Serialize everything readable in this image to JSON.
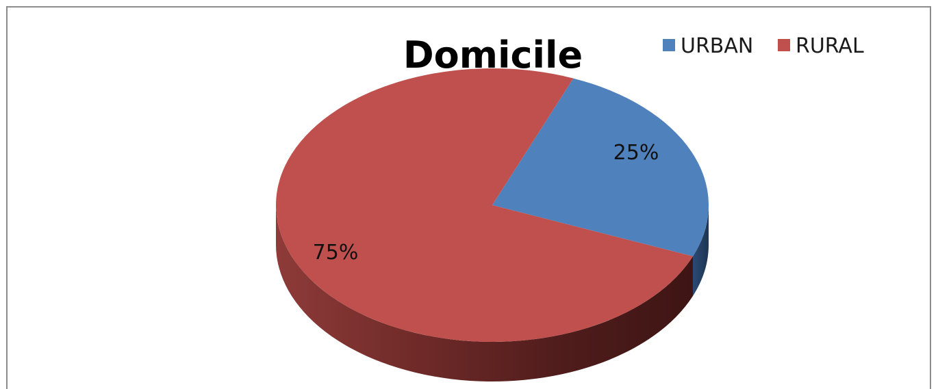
{
  "chart_data": {
    "type": "pie",
    "title": "Domicile",
    "categories": [
      "URBAN",
      "RURAL"
    ],
    "values": [
      25,
      75
    ],
    "data_labels": [
      "25%",
      "75%"
    ],
    "colors": [
      "#4F81BD",
      "#C0504D"
    ],
    "side_colors": [
      "#2B4A73",
      "#7A2A28"
    ],
    "legend_position": "top-right",
    "style": "3d-pie"
  }
}
